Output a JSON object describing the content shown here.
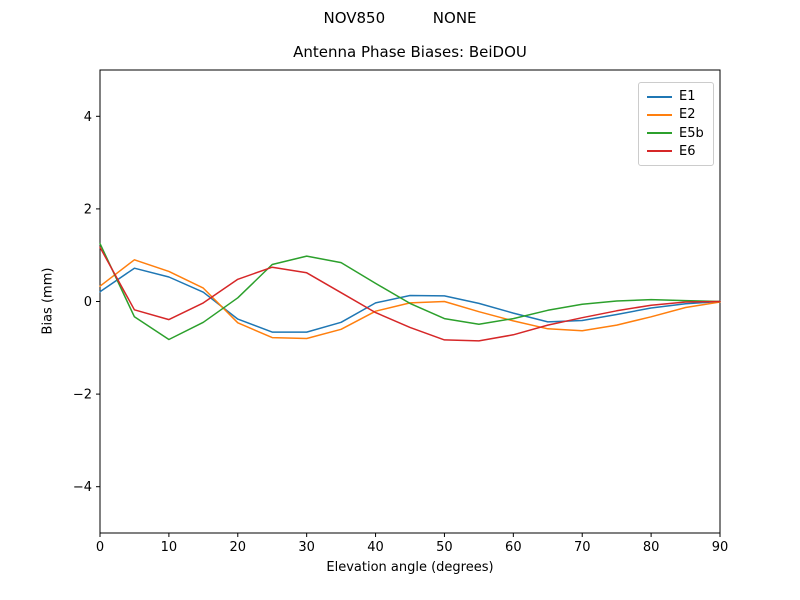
{
  "figure": {
    "suptitle": "NOV850          NONE",
    "background": "#ffffff",
    "spine_color": "#000000"
  },
  "chart_data": {
    "type": "line",
    "title": "Antenna Phase Biases: BeiDOU",
    "xlabel": "Elevation angle (degrees)",
    "ylabel": "Bias (mm)",
    "xlim": [
      0,
      90
    ],
    "ylim": [
      -5,
      5
    ],
    "xticks": [
      0,
      10,
      20,
      30,
      40,
      50,
      60,
      70,
      80,
      90
    ],
    "yticks": [
      -4,
      -2,
      0,
      2,
      4
    ],
    "grid": false,
    "legend_position": "upper right",
    "x": [
      0,
      5,
      10,
      15,
      20,
      25,
      30,
      35,
      40,
      45,
      50,
      55,
      60,
      65,
      70,
      75,
      80,
      85,
      90
    ],
    "series": [
      {
        "name": "E1",
        "color": "#1f77b4",
        "values": [
          0.21,
          0.72,
          0.53,
          0.2,
          -0.38,
          -0.66,
          -0.66,
          -0.45,
          -0.03,
          0.13,
          0.12,
          -0.04,
          -0.25,
          -0.44,
          -0.41,
          -0.28,
          -0.14,
          -0.05,
          0.0
        ]
      },
      {
        "name": "E2",
        "color": "#ff7f0e",
        "values": [
          0.33,
          0.9,
          0.65,
          0.29,
          -0.46,
          -0.78,
          -0.8,
          -0.6,
          -0.21,
          -0.03,
          0.0,
          -0.22,
          -0.42,
          -0.59,
          -0.63,
          -0.51,
          -0.33,
          -0.13,
          -0.01
        ]
      },
      {
        "name": "E5b",
        "color": "#2ca02c",
        "values": [
          1.25,
          -0.33,
          -0.82,
          -0.45,
          0.08,
          0.8,
          0.98,
          0.84,
          0.39,
          -0.04,
          -0.37,
          -0.49,
          -0.37,
          -0.19,
          -0.06,
          0.01,
          0.04,
          0.02,
          0.0
        ]
      },
      {
        "name": "E6",
        "color": "#d62728",
        "values": [
          1.17,
          -0.18,
          -0.39,
          -0.03,
          0.48,
          0.74,
          0.62,
          0.19,
          -0.24,
          -0.56,
          -0.83,
          -0.85,
          -0.72,
          -0.51,
          -0.35,
          -0.2,
          -0.08,
          -0.01,
          0.0
        ]
      }
    ]
  }
}
